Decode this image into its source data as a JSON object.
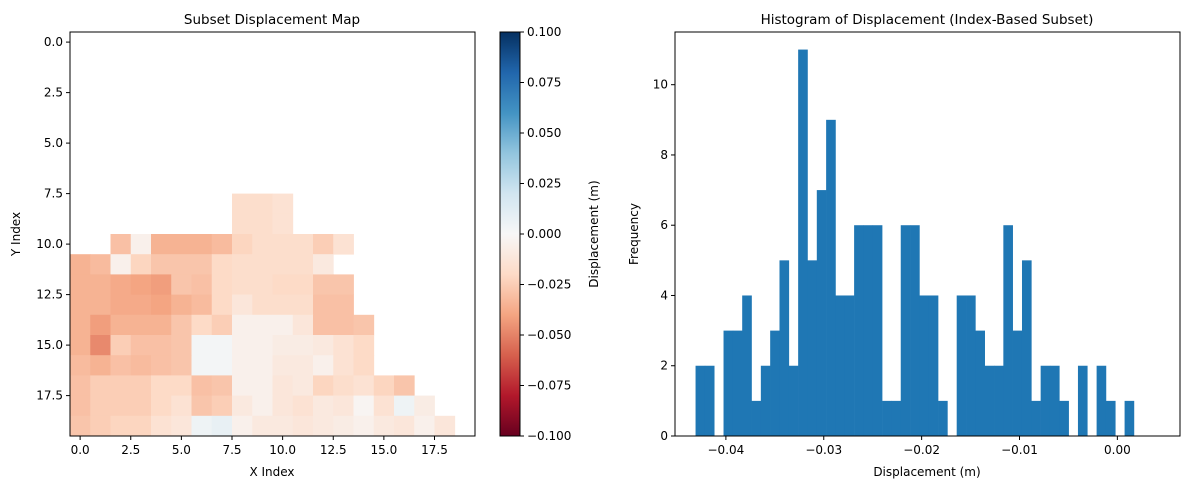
{
  "chart_data": [
    {
      "type": "heatmap",
      "title": "Subset Displacement Map",
      "xlabel": "X Index",
      "ylabel": "Y Index",
      "xlim": [
        -0.5,
        19.5
      ],
      "ylim": [
        -0.5,
        19.5
      ],
      "y_inverted": true,
      "x_ticks": [
        "0.0",
        "2.5",
        "5.0",
        "7.5",
        "10.0",
        "12.5",
        "15.0",
        "17.5"
      ],
      "y_ticks": [
        "0.0",
        "2.5",
        "5.0",
        "7.5",
        "10.0",
        "12.5",
        "15.0",
        "17.5"
      ],
      "colormap": "RdBu",
      "colorbar": {
        "label": "Displacement (m)",
        "vmin": -0.1,
        "vmax": 0.1,
        "ticks": [
          "0.100",
          "0.075",
          "0.050",
          "0.025",
          "0.000",
          "−0.025",
          "−0.050",
          "−0.075",
          "−0.100"
        ]
      },
      "rows": [
        {
          "y": 8,
          "x_start": 8,
          "values": [
            -0.018,
            -0.018,
            -0.015
          ]
        },
        {
          "y": 9,
          "x_start": 8,
          "values": [
            -0.018,
            -0.018,
            -0.015
          ]
        },
        {
          "y": 10,
          "x_start": 2,
          "values": [
            -0.03,
            -0.005,
            -0.035,
            -0.035,
            -0.035,
            -0.032,
            -0.022,
            -0.018,
            -0.018,
            -0.018,
            -0.025,
            -0.015
          ]
        },
        {
          "y": 11,
          "x_start": 0,
          "values": [
            -0.035,
            -0.032,
            -0.005,
            -0.022,
            -0.028,
            -0.028,
            -0.028,
            -0.02,
            -0.018,
            -0.018,
            -0.018,
            -0.018,
            -0.01
          ]
        },
        {
          "y": 12,
          "x_start": 0,
          "values": [
            -0.035,
            -0.035,
            -0.038,
            -0.04,
            -0.042,
            -0.028,
            -0.03,
            -0.02,
            -0.018,
            -0.018,
            -0.02,
            -0.02,
            -0.028,
            -0.028
          ]
        },
        {
          "y": 13,
          "x_start": 0,
          "values": [
            -0.035,
            -0.035,
            -0.038,
            -0.038,
            -0.04,
            -0.035,
            -0.032,
            -0.02,
            -0.012,
            -0.018,
            -0.018,
            -0.018,
            -0.03,
            -0.03
          ]
        },
        {
          "y": 14,
          "x_start": 0,
          "values": [
            -0.035,
            -0.042,
            -0.035,
            -0.035,
            -0.035,
            -0.028,
            -0.02,
            -0.025,
            -0.005,
            -0.005,
            -0.005,
            -0.012,
            -0.03,
            -0.03,
            -0.028
          ]
        },
        {
          "y": 15,
          "x_start": 0,
          "values": [
            -0.035,
            -0.048,
            -0.025,
            -0.03,
            -0.03,
            -0.028,
            0.002,
            0.002,
            -0.005,
            -0.005,
            -0.008,
            -0.008,
            -0.01,
            -0.015,
            -0.02
          ]
        },
        {
          "y": 16,
          "x_start": 0,
          "values": [
            -0.032,
            -0.035,
            -0.03,
            -0.032,
            -0.03,
            -0.028,
            0.002,
            0.002,
            -0.005,
            -0.005,
            -0.01,
            -0.01,
            -0.005,
            -0.015,
            -0.02
          ]
        },
        {
          "y": 17,
          "x_start": 0,
          "values": [
            -0.03,
            -0.025,
            -0.025,
            -0.025,
            -0.02,
            -0.02,
            -0.03,
            -0.028,
            -0.005,
            -0.005,
            -0.012,
            -0.01,
            -0.022,
            -0.018,
            -0.015,
            -0.022,
            -0.028
          ]
        },
        {
          "y": 18,
          "x_start": 0,
          "values": [
            -0.03,
            -0.025,
            -0.025,
            -0.025,
            -0.02,
            -0.015,
            -0.028,
            -0.025,
            -0.01,
            -0.005,
            -0.012,
            -0.015,
            -0.01,
            -0.012,
            -0.002,
            -0.015,
            0.005,
            -0.008
          ]
        },
        {
          "y": 19,
          "x_start": 0,
          "values": [
            -0.028,
            -0.025,
            -0.022,
            -0.022,
            -0.015,
            -0.012,
            0.005,
            0.008,
            -0.005,
            -0.01,
            -0.01,
            -0.012,
            -0.01,
            -0.008,
            -0.005,
            -0.01,
            -0.012,
            -0.005,
            -0.012
          ]
        }
      ]
    },
    {
      "type": "bar",
      "title": "Histogram of Displacement (Index-Based Subset)",
      "xlabel": "Displacement (m)",
      "ylabel": "Frequency",
      "x_ticks": [
        {
          "value": -0.04,
          "label": "−0.04"
        },
        {
          "value": -0.03,
          "label": "−0.03"
        },
        {
          "value": -0.02,
          "label": "−0.02"
        },
        {
          "value": -0.01,
          "label": "−0.01"
        },
        {
          "value": 0.0,
          "label": "0.00"
        }
      ],
      "y_ticks": [
        0,
        2,
        4,
        6,
        8,
        10
      ],
      "xlim": [
        -0.0452,
        0.0064
      ],
      "ylim": [
        0,
        11.5
      ],
      "bin_start": -0.0431,
      "bin_width": 0.000953,
      "counts": [
        2,
        2,
        0,
        3,
        3,
        4,
        1,
        2,
        3,
        5,
        2,
        11,
        5,
        7,
        9,
        4,
        4,
        6,
        6,
        6,
        1,
        1,
        6,
        6,
        4,
        4,
        1,
        0,
        4,
        4,
        3,
        2,
        2,
        6,
        3,
        5,
        1,
        2,
        2,
        1,
        0,
        2,
        0,
        2,
        1,
        0,
        1
      ]
    }
  ]
}
